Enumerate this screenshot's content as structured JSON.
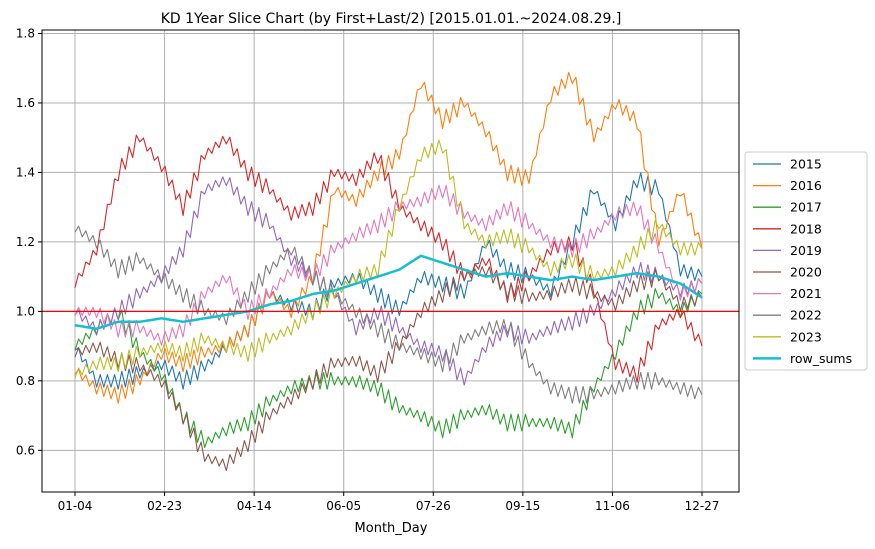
{
  "chart_data": {
    "type": "line",
    "title": "KD 1Year Slice Chart (by First+Last/2) [2015.01.01.~2024.08.29.]",
    "xlabel": "Month_Day",
    "ylabel": "",
    "x_ticks": [
      "01-04",
      "02-23",
      "04-14",
      "06-05",
      "07-26",
      "09-15",
      "11-06",
      "12-27"
    ],
    "y_ticks": [
      "0.6",
      "0.8",
      "1.0",
      "1.2",
      "1.4",
      "1.6",
      "1.8"
    ],
    "ylim": [
      0.48,
      1.81
    ],
    "reference_line": {
      "y": 1.0,
      "color": "#ff0000"
    },
    "grid": true,
    "legend_position": "center-right outside",
    "series": [
      {
        "name": "2015",
        "color": "#1f77b4",
        "values": [
          0.9,
          0.8,
          0.8,
          0.82,
          0.85,
          0.8,
          0.84,
          0.9,
          0.95,
          1.05,
          1.02,
          1.0,
          1.08,
          1.1,
          1.05,
          1.0,
          1.1,
          1.08,
          1.05,
          1.2,
          1.12,
          1.1,
          1.06,
          1.2,
          1.35,
          1.25,
          1.38,
          1.35,
          1.12,
          1.1
        ]
      },
      {
        "name": "2016",
        "color": "#ff7f0e",
        "values": [
          0.83,
          0.78,
          0.76,
          0.8,
          0.88,
          0.85,
          0.88,
          0.9,
          0.95,
          1.05,
          1.0,
          1.1,
          1.35,
          1.32,
          1.4,
          1.45,
          1.66,
          1.55,
          1.6,
          1.52,
          1.4,
          1.38,
          1.62,
          1.68,
          1.5,
          1.6,
          1.55,
          1.2,
          1.35,
          1.18
        ]
      },
      {
        "name": "2017",
        "color": "#2ca02c",
        "values": [
          0.9,
          0.95,
          1.0,
          0.88,
          0.82,
          0.7,
          0.62,
          0.66,
          0.68,
          0.74,
          0.78,
          0.8,
          0.8,
          0.8,
          0.78,
          0.72,
          0.7,
          0.66,
          0.7,
          0.72,
          0.68,
          0.68,
          0.68,
          0.66,
          0.78,
          0.88,
          1.0,
          1.05,
          1.0,
          1.05
        ]
      },
      {
        "name": "2018",
        "color": "#d62728",
        "values": [
          1.08,
          1.18,
          1.4,
          1.5,
          1.42,
          1.3,
          1.45,
          1.5,
          1.4,
          1.35,
          1.28,
          1.3,
          1.4,
          1.38,
          1.45,
          1.3,
          1.25,
          1.2,
          1.1,
          1.15,
          1.05,
          1.1,
          1.18,
          1.2,
          1.06,
          0.85,
          0.82,
          0.96,
          1.0,
          0.9
        ]
      },
      {
        "name": "2019",
        "color": "#9467bd",
        "values": [
          1.0,
          0.95,
          1.0,
          1.05,
          1.1,
          1.18,
          1.35,
          1.38,
          1.3,
          1.25,
          1.15,
          1.1,
          1.05,
          0.95,
          1.0,
          0.95,
          0.9,
          0.88,
          0.8,
          0.9,
          0.95,
          0.92,
          0.95,
          0.97,
          1.0,
          1.06,
          1.12,
          1.1,
          1.06,
          1.08
        ]
      },
      {
        "name": "2020",
        "color": "#8c564b",
        "values": [
          0.88,
          0.9,
          0.86,
          0.84,
          0.8,
          0.7,
          0.58,
          0.56,
          0.62,
          0.7,
          0.75,
          0.8,
          0.85,
          0.86,
          0.82,
          0.9,
          1.0,
          1.05,
          1.1,
          1.12,
          1.06,
          1.04,
          1.05,
          1.08,
          1.05,
          1.02,
          1.08,
          1.1,
          1.02,
          1.04
        ]
      },
      {
        "name": "2021",
        "color": "#e377c2",
        "values": [
          1.0,
          1.0,
          0.95,
          0.95,
          0.92,
          0.95,
          1.05,
          1.1,
          1.0,
          1.05,
          1.12,
          1.1,
          1.18,
          1.22,
          1.25,
          1.3,
          1.32,
          1.35,
          1.28,
          1.25,
          1.3,
          1.25,
          1.2,
          1.18,
          1.22,
          1.28,
          1.3,
          1.18,
          1.05,
          1.08
        ]
      },
      {
        "name": "2022",
        "color": "#7f7f7f",
        "values": [
          1.24,
          1.2,
          1.12,
          1.15,
          1.1,
          1.05,
          1.0,
          0.98,
          1.05,
          1.12,
          1.18,
          1.1,
          1.05,
          1.0,
          0.95,
          0.9,
          0.88,
          0.85,
          0.92,
          0.95,
          0.96,
          0.85,
          0.78,
          0.76,
          0.76,
          0.78,
          0.8,
          0.8,
          0.78,
          0.76
        ]
      },
      {
        "name": "2023",
        "color": "#bcbd22",
        "values": [
          0.82,
          0.85,
          0.85,
          0.88,
          0.9,
          0.88,
          0.92,
          0.9,
          0.88,
          0.92,
          0.95,
          1.0,
          1.05,
          1.1,
          1.12,
          1.3,
          1.45,
          1.48,
          1.25,
          1.2,
          1.22,
          1.18,
          1.12,
          1.15,
          1.1,
          1.12,
          1.18,
          1.25,
          1.18,
          1.18
        ]
      },
      {
        "name": "row_sums",
        "color": "#17becf",
        "values": [
          0.96,
          0.95,
          0.97,
          0.97,
          0.98,
          0.97,
          0.98,
          0.99,
          1.0,
          1.02,
          1.03,
          1.05,
          1.06,
          1.08,
          1.1,
          1.12,
          1.16,
          1.14,
          1.12,
          1.1,
          1.11,
          1.1,
          1.09,
          1.1,
          1.09,
          1.1,
          1.11,
          1.1,
          1.08,
          1.04
        ]
      }
    ]
  }
}
